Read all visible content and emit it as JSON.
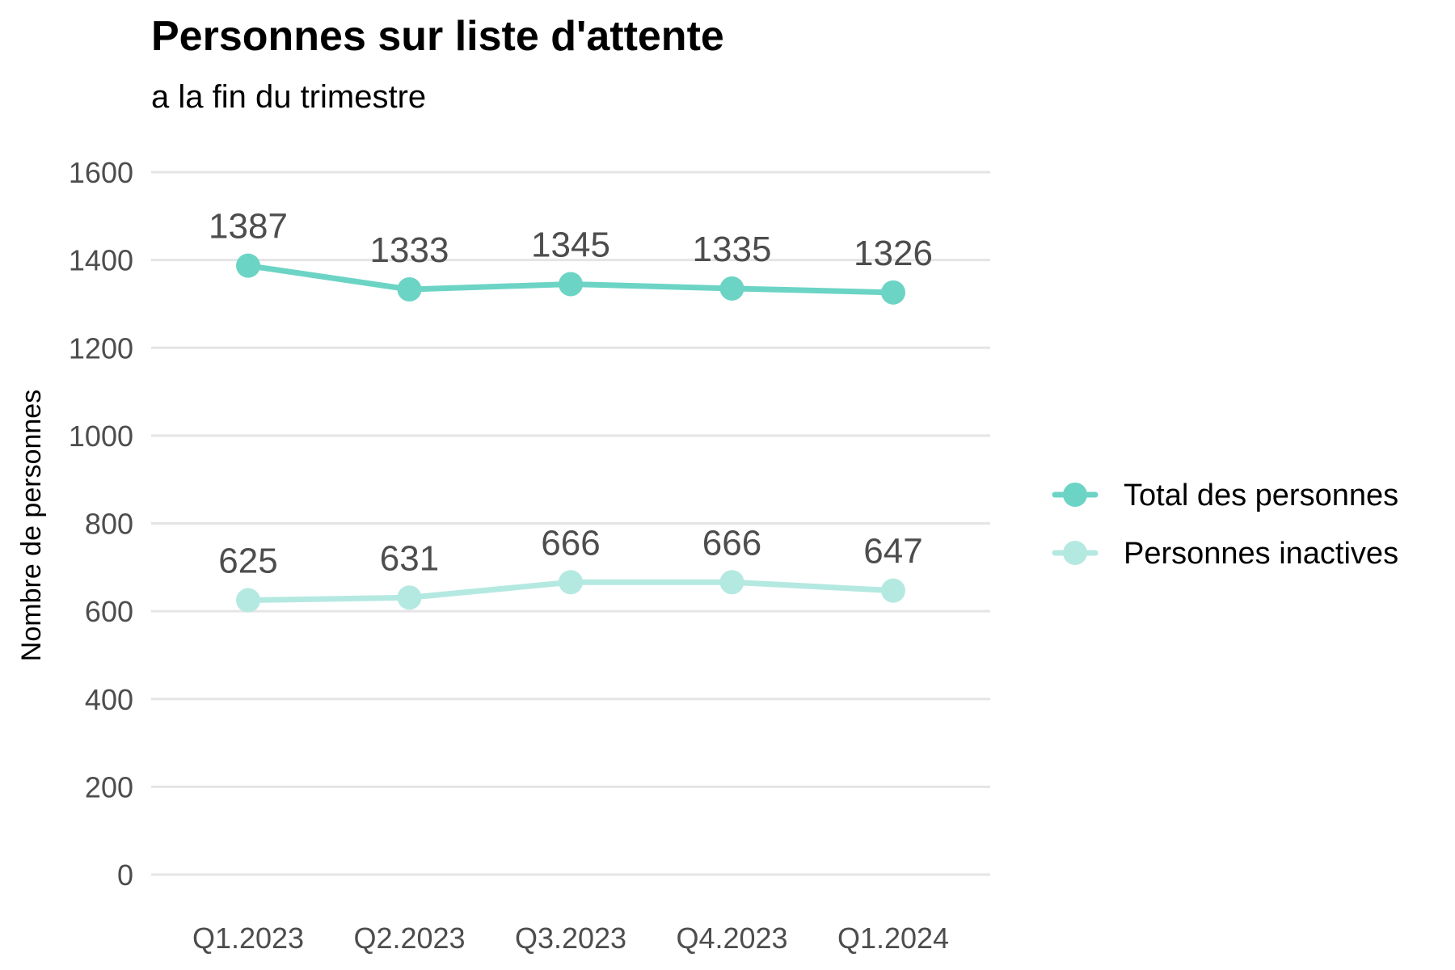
{
  "chart_data": {
    "type": "line",
    "title": "Personnes sur liste d'attente",
    "subtitle": "a la fin du trimestre",
    "xlabel": "",
    "ylabel": "Nombre de personnes",
    "categories": [
      "Q1.2023",
      "Q2.2023",
      "Q3.2023",
      "Q4.2023",
      "Q1.2024"
    ],
    "ylim": [
      0,
      1600
    ],
    "yticks": [
      0,
      200,
      400,
      600,
      800,
      1000,
      1200,
      1400,
      1600
    ],
    "grid": true,
    "legend_position": "right",
    "series": [
      {
        "name": "Total des personnes",
        "values": [
          1387,
          1333,
          1345,
          1335,
          1326
        ],
        "labels": [
          "1387",
          "1333",
          "1345",
          "1335",
          "1326"
        ],
        "color": "#6cd4c5"
      },
      {
        "name": "Personnes inactives",
        "values": [
          625,
          631,
          666,
          666,
          647
        ],
        "labels": [
          "625",
          "631",
          "666",
          "666",
          "647"
        ],
        "color": "#b4e9e1"
      }
    ]
  }
}
